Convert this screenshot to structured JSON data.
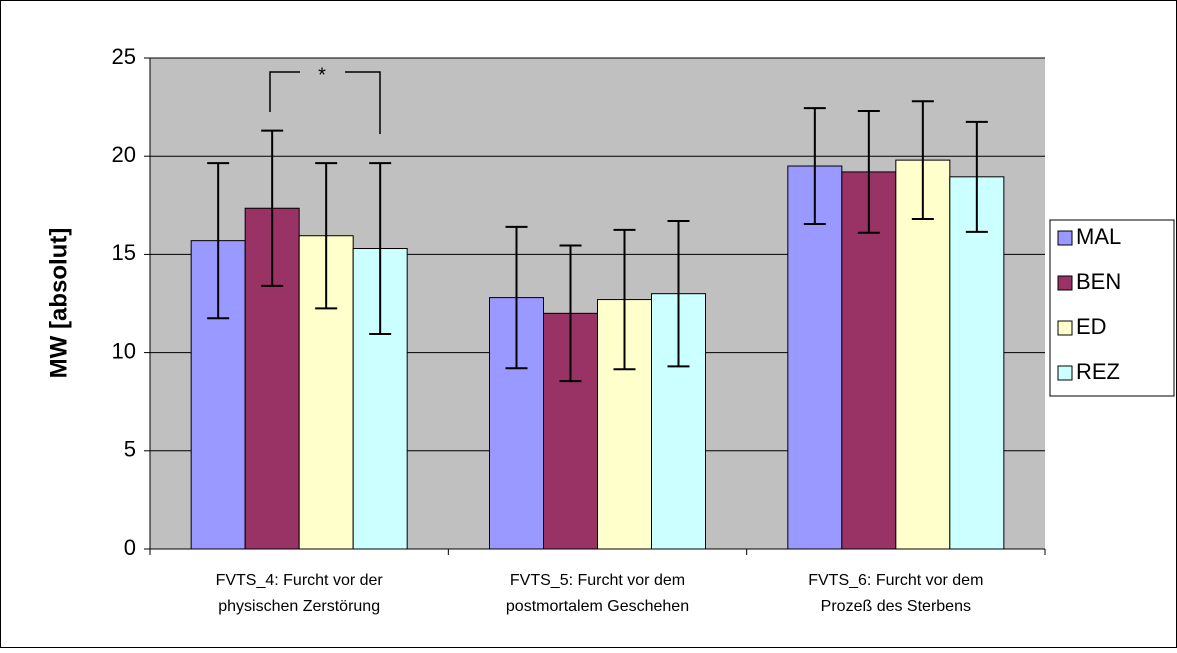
{
  "chart_data": {
    "type": "bar",
    "y_label": "MW [absolut]",
    "categories": [
      [
        "FVTS_4: Furcht vor der",
        "physischen Zerstörung"
      ],
      [
        "FVTS_5: Furcht vor dem",
        "postmortalem Geschehen"
      ],
      [
        "FVTS_6: Furcht vor dem",
        "Prozeß des Sterbens"
      ]
    ],
    "series": [
      {
        "name": "MAL",
        "color": "#9999ff",
        "values": [
          15.7,
          12.8,
          19.5
        ],
        "errors": [
          3.95,
          3.6,
          2.95
        ]
      },
      {
        "name": "BEN",
        "color": "#993366",
        "values": [
          17.35,
          12.0,
          19.2
        ],
        "errors": [
          3.95,
          3.45,
          3.1
        ]
      },
      {
        "name": "ED",
        "color": "#ffffcc",
        "values": [
          15.95,
          12.7,
          19.8
        ],
        "errors": [
          3.7,
          3.55,
          3.0
        ]
      },
      {
        "name": "REZ",
        "color": "#ccffff",
        "values": [
          15.3,
          13.0,
          18.95
        ],
        "errors": [
          4.35,
          3.7,
          2.8
        ]
      }
    ],
    "annotation": "*",
    "ylim": [
      0,
      25
    ],
    "yticks": [
      0,
      5,
      10,
      15,
      20,
      25
    ],
    "grid": true,
    "legend": "right"
  }
}
